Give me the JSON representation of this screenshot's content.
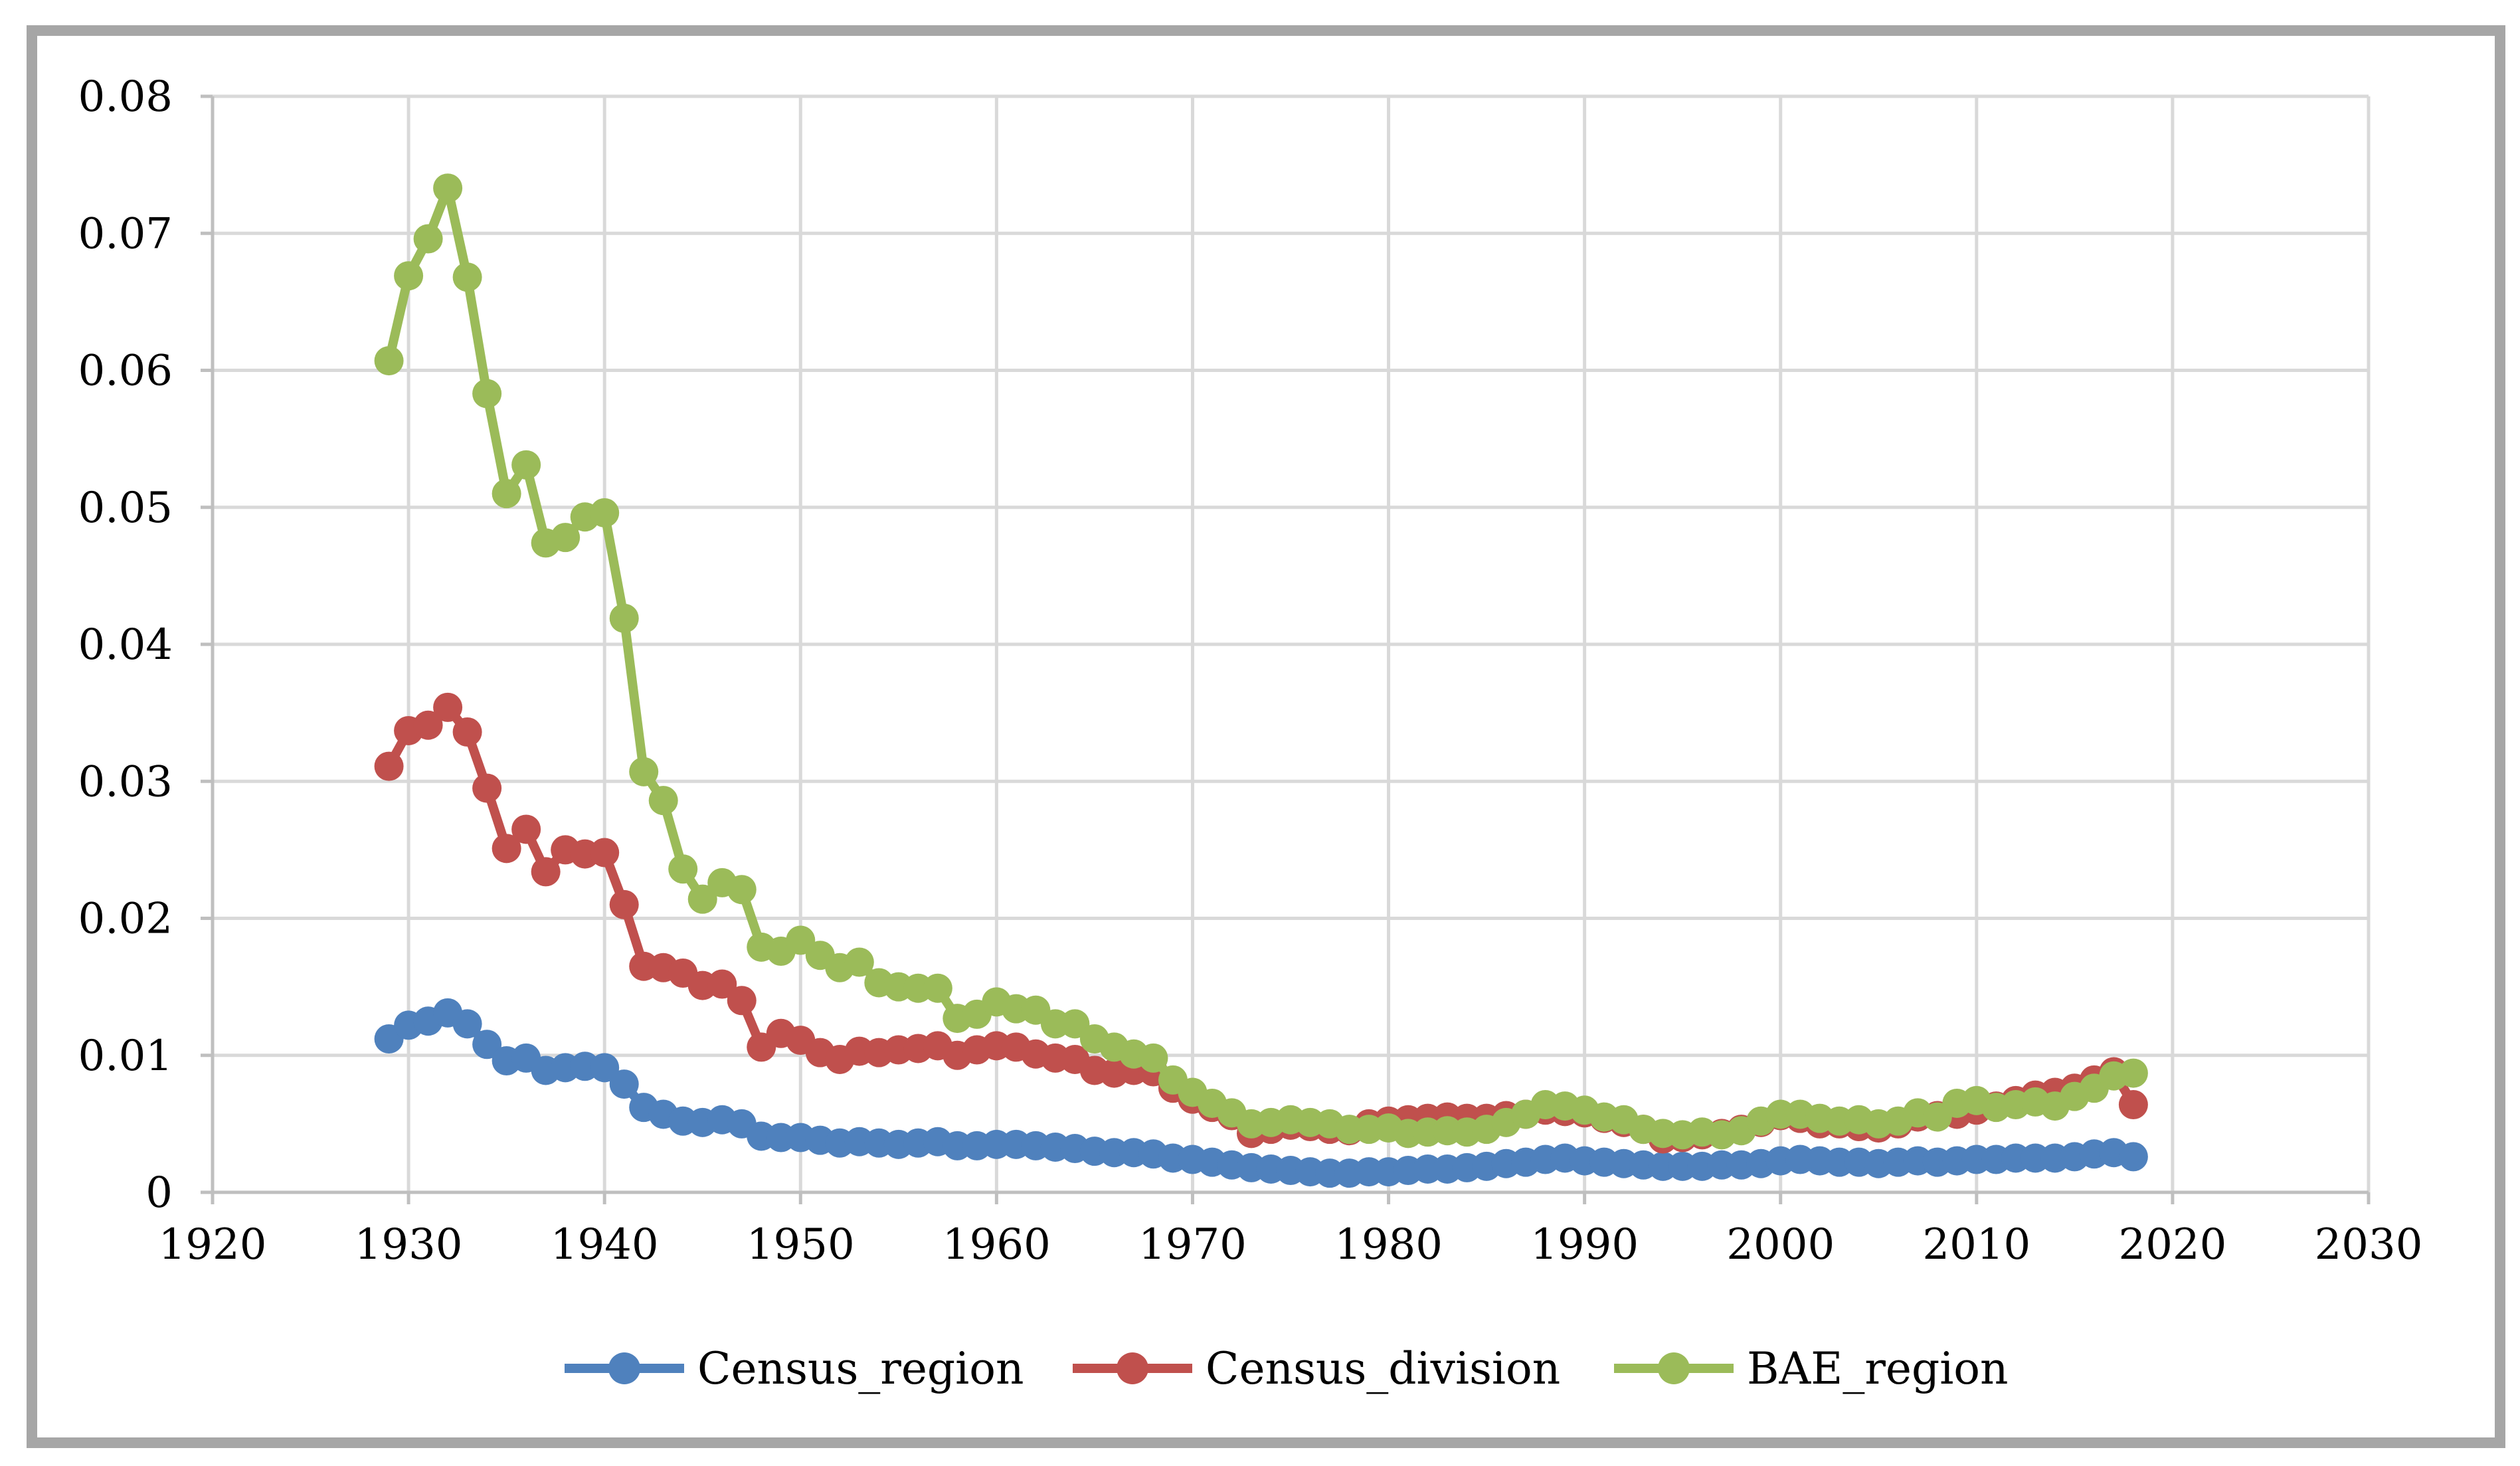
{
  "chart_data": {
    "type": "line",
    "title": "",
    "xlabel": "",
    "ylabel": "",
    "xlim": [
      1920,
      2030
    ],
    "ylim": [
      0,
      0.08
    ],
    "x_ticks": [
      "1920",
      "1930",
      "1940",
      "1950",
      "1960",
      "1970",
      "1980",
      "1990",
      "2000",
      "2010",
      "2020",
      "2030"
    ],
    "y_ticks": [
      "0",
      "0.01",
      "0.02",
      "0.03",
      "0.04",
      "0.05",
      "0.06",
      "0.07",
      "0.08"
    ],
    "grid": true,
    "legend_position": "bottom",
    "x": [
      1929,
      1930,
      1931,
      1932,
      1933,
      1934,
      1935,
      1936,
      1937,
      1938,
      1939,
      1940,
      1941,
      1942,
      1943,
      1944,
      1945,
      1946,
      1947,
      1948,
      1949,
      1950,
      1951,
      1952,
      1953,
      1954,
      1955,
      1956,
      1957,
      1958,
      1959,
      1960,
      1961,
      1962,
      1963,
      1964,
      1965,
      1966,
      1967,
      1968,
      1969,
      1970,
      1971,
      1972,
      1973,
      1974,
      1975,
      1976,
      1977,
      1978,
      1979,
      1980,
      1981,
      1982,
      1983,
      1984,
      1985,
      1986,
      1987,
      1988,
      1989,
      1990,
      1991,
      1992,
      1993,
      1994,
      1995,
      1996,
      1997,
      1998,
      1999,
      2000,
      2001,
      2002,
      2003,
      2004,
      2005,
      2006,
      2007,
      2008,
      2009,
      2010,
      2011,
      2012,
      2013,
      2014,
      2015,
      2016,
      2017,
      2018
    ],
    "series": [
      {
        "name": "Census_region",
        "color": "#4f81bd",
        "values": [
          0.0112,
          0.0122,
          0.0125,
          0.0131,
          0.0123,
          0.0108,
          0.0096,
          0.0098,
          0.0089,
          0.0091,
          0.0092,
          0.0091,
          0.0079,
          0.0062,
          0.0057,
          0.0052,
          0.0051,
          0.0053,
          0.005,
          0.0041,
          0.004,
          0.004,
          0.0038,
          0.0036,
          0.0037,
          0.0036,
          0.0035,
          0.0036,
          0.0037,
          0.0034,
          0.0034,
          0.0035,
          0.0035,
          0.0034,
          0.0033,
          0.0032,
          0.003,
          0.0029,
          0.0029,
          0.0028,
          0.0025,
          0.0024,
          0.0022,
          0.002,
          0.0018,
          0.0017,
          0.0016,
          0.0015,
          0.0014,
          0.0014,
          0.0015,
          0.0015,
          0.0016,
          0.0017,
          0.0017,
          0.0018,
          0.0019,
          0.0021,
          0.0022,
          0.0024,
          0.0025,
          0.0023,
          0.0022,
          0.0021,
          0.002,
          0.0019,
          0.0019,
          0.0019,
          0.002,
          0.002,
          0.0021,
          0.0023,
          0.0024,
          0.0023,
          0.0022,
          0.0022,
          0.0021,
          0.0022,
          0.0023,
          0.0022,
          0.0023,
          0.0024,
          0.0024,
          0.0025,
          0.0025,
          0.0025,
          0.0026,
          0.0028,
          0.0029,
          0.0026
        ]
      },
      {
        "name": "Census_division",
        "color": "#c0504d",
        "values": [
          0.0311,
          0.0337,
          0.0341,
          0.0354,
          0.0336,
          0.0295,
          0.0251,
          0.0265,
          0.0234,
          0.025,
          0.0247,
          0.0248,
          0.021,
          0.0165,
          0.0164,
          0.016,
          0.0151,
          0.0152,
          0.014,
          0.0106,
          0.0116,
          0.0111,
          0.0102,
          0.0097,
          0.0103,
          0.0102,
          0.0104,
          0.0105,
          0.0107,
          0.01,
          0.0104,
          0.0107,
          0.0106,
          0.0101,
          0.0098,
          0.0097,
          0.0089,
          0.0087,
          0.0089,
          0.0088,
          0.0076,
          0.0068,
          0.0062,
          0.0056,
          0.0043,
          0.0046,
          0.0049,
          0.0048,
          0.0046,
          0.0045,
          0.005,
          0.0052,
          0.0053,
          0.0054,
          0.0055,
          0.0054,
          0.0054,
          0.0056,
          0.0057,
          0.006,
          0.0059,
          0.0058,
          0.0054,
          0.0051,
          0.0046,
          0.0039,
          0.004,
          0.0042,
          0.0043,
          0.0046,
          0.0051,
          0.0056,
          0.0054,
          0.005,
          0.005,
          0.0048,
          0.0047,
          0.005,
          0.0055,
          0.0056,
          0.0057,
          0.006,
          0.0063,
          0.0067,
          0.0071,
          0.0073,
          0.0076,
          0.0082,
          0.0088,
          0.0064
        ]
      },
      {
        "name": "BAE_region",
        "color": "#9bbb59",
        "values": [
          0.0607,
          0.0669,
          0.0696,
          0.0733,
          0.0668,
          0.0583,
          0.051,
          0.0531,
          0.0474,
          0.0478,
          0.0493,
          0.0496,
          0.0419,
          0.0307,
          0.0286,
          0.0236,
          0.0214,
          0.0226,
          0.0221,
          0.0179,
          0.0176,
          0.0184,
          0.0173,
          0.0164,
          0.0168,
          0.0153,
          0.015,
          0.0149,
          0.0149,
          0.0127,
          0.013,
          0.0139,
          0.0134,
          0.0133,
          0.0123,
          0.0123,
          0.0112,
          0.0106,
          0.0101,
          0.0098,
          0.0082,
          0.0073,
          0.0065,
          0.0058,
          0.005,
          0.0051,
          0.0053,
          0.0051,
          0.005,
          0.0046,
          0.0046,
          0.0047,
          0.0043,
          0.0044,
          0.0045,
          0.0044,
          0.0046,
          0.0051,
          0.0057,
          0.0064,
          0.0063,
          0.006,
          0.0055,
          0.0053,
          0.0046,
          0.0043,
          0.0042,
          0.0044,
          0.0042,
          0.0045,
          0.0052,
          0.0057,
          0.0057,
          0.0054,
          0.0052,
          0.0053,
          0.005,
          0.0052,
          0.0058,
          0.0055,
          0.0065,
          0.0067,
          0.0062,
          0.0064,
          0.0066,
          0.0063,
          0.007,
          0.0076,
          0.0085,
          0.0087
        ]
      }
    ]
  }
}
